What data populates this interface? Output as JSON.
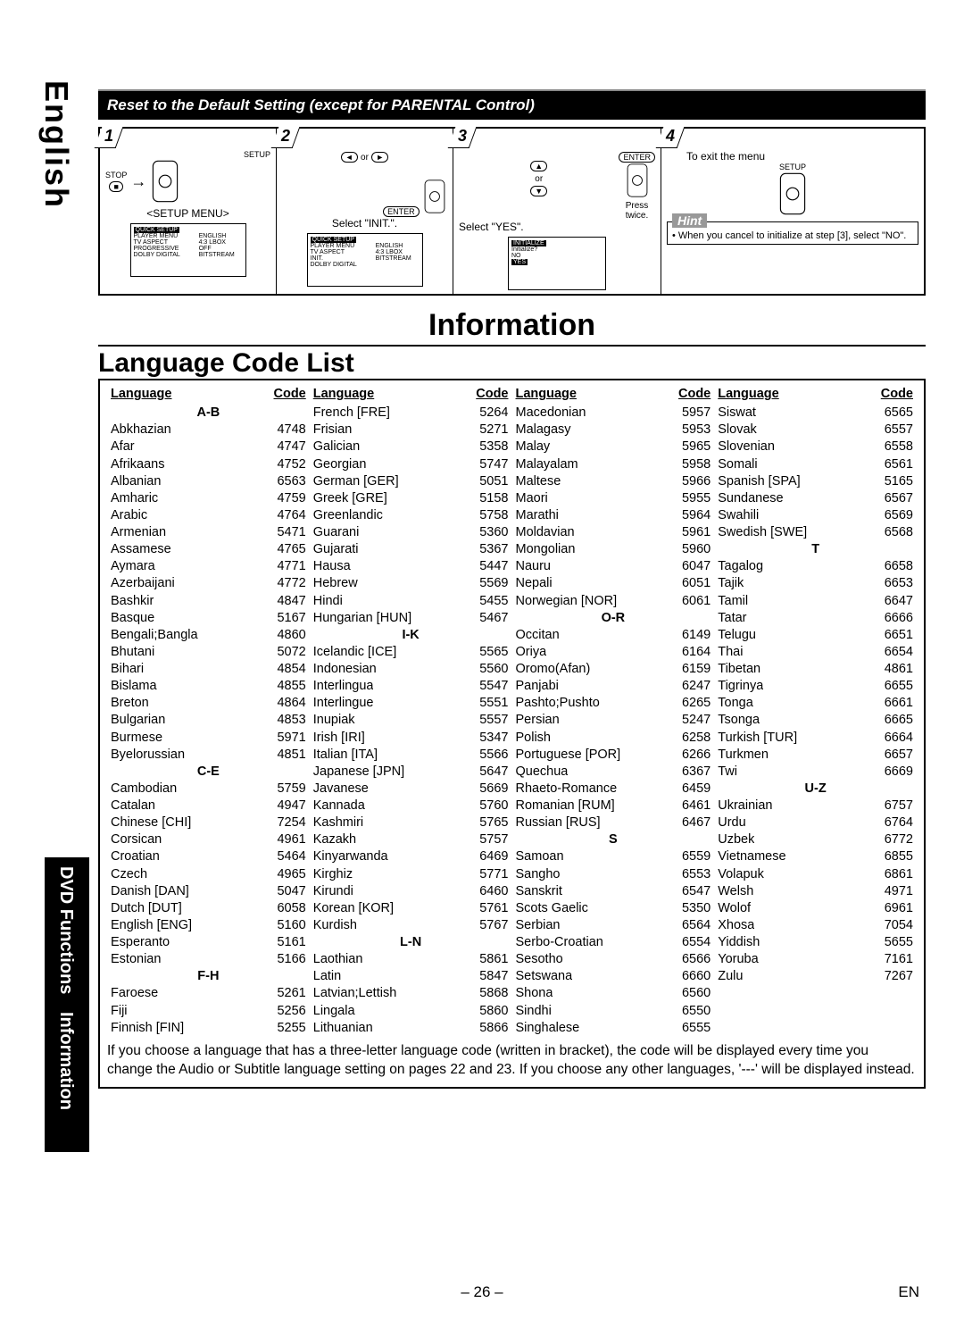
{
  "sideTab1": "English",
  "sideTab2a": "DVD Functions",
  "sideTab2b": "Information",
  "sectionBarTitle": "Reset to the Default Setting (except for PARENTAL Control)",
  "step1": {
    "num": "1",
    "setup": "SETUP",
    "stop": "STOP",
    "menuLabel": "<SETUP MENU>",
    "screen": {
      "hi": "QUICK SETUP",
      "l1": "PLAYER MENU",
      "l2": "TV ASPECT",
      "l3": "PROGRESSIVE",
      "l4": "DOLBY DIGITAL",
      "r1": "ENGLISH",
      "r2": "4:3 LBOX",
      "r3": "OFF",
      "r4": "BITSTREAM"
    }
  },
  "step2": {
    "num": "2",
    "or": "or",
    "caption": "Select \"INIT.\".",
    "enter": "ENTER",
    "screen": {
      "hi": "QUICK SETUP",
      "l1": "PLAYER MENU",
      "l2": "TV ASPECT",
      "l3": "INIT.",
      "l4": "DOLBY DIGITAL",
      "r1": "ENGLISH",
      "r2": "4:3 LBOX",
      "r3": "",
      "r4": "BITSTREAM"
    }
  },
  "step3": {
    "num": "3",
    "or": "or",
    "caption": "Select \"YES\".",
    "enter": "ENTER",
    "press": "Press twice.",
    "screen": {
      "hi": "INITIALIZE",
      "l1": "Initialize?",
      "l2": "NO",
      "l3": "YES"
    }
  },
  "step4": {
    "num": "4",
    "toExit": "To exit the menu",
    "setup": "SETUP",
    "hintLabel": "Hint",
    "hintText": "• When you cancel to initialize at step [3], select \"NO\"."
  },
  "infoTitle": "Information",
  "lclTitle": "Language Code List",
  "colHeaders": {
    "lang": "Language",
    "code": "Code"
  },
  "groups": {
    "ab": "A-B",
    "ce": "C-E",
    "fh": "F-H",
    "ik": "I-K",
    "ln": "L-N",
    "or": "O-R",
    "s": "S",
    "t": "T",
    "uz": "U-Z"
  },
  "col1": [
    {
      "g": "ab"
    },
    {
      "l": "Abkhazian",
      "c": "4748"
    },
    {
      "l": "Afar",
      "c": "4747"
    },
    {
      "l": "Afrikaans",
      "c": "4752"
    },
    {
      "l": "Albanian",
      "c": "6563"
    },
    {
      "l": "Amharic",
      "c": "4759"
    },
    {
      "l": "Arabic",
      "c": "4764"
    },
    {
      "l": "Armenian",
      "c": "5471"
    },
    {
      "l": "Assamese",
      "c": "4765"
    },
    {
      "l": "Aymara",
      "c": "4771"
    },
    {
      "l": "Azerbaijani",
      "c": "4772"
    },
    {
      "l": "Bashkir",
      "c": "4847"
    },
    {
      "l": "Basque",
      "c": "5167"
    },
    {
      "l": "Bengali;Bangla",
      "c": "4860"
    },
    {
      "l": "Bhutani",
      "c": "5072"
    },
    {
      "l": "Bihari",
      "c": "4854"
    },
    {
      "l": "Bislama",
      "c": "4855"
    },
    {
      "l": "Breton",
      "c": "4864"
    },
    {
      "l": "Bulgarian",
      "c": "4853"
    },
    {
      "l": "Burmese",
      "c": "5971"
    },
    {
      "l": "Byelorussian",
      "c": "4851"
    },
    {
      "g": "ce"
    },
    {
      "l": "Cambodian",
      "c": "5759"
    },
    {
      "l": "Catalan",
      "c": "4947"
    },
    {
      "l": "Chinese [CHI]",
      "c": "7254"
    },
    {
      "l": "Corsican",
      "c": "4961"
    },
    {
      "l": "Croatian",
      "c": "5464"
    },
    {
      "l": "Czech",
      "c": "4965"
    },
    {
      "l": "Danish [DAN]",
      "c": "5047"
    },
    {
      "l": "Dutch [DUT]",
      "c": "6058"
    },
    {
      "l": "English [ENG]",
      "c": "5160"
    },
    {
      "l": "Esperanto",
      "c": "5161"
    },
    {
      "l": "Estonian",
      "c": "5166"
    },
    {
      "g": "fh"
    },
    {
      "l": "Faroese",
      "c": "5261"
    },
    {
      "l": "Fiji",
      "c": "5256"
    },
    {
      "l": "Finnish [FIN]",
      "c": "5255"
    }
  ],
  "col2": [
    {
      "l": "French [FRE]",
      "c": "5264"
    },
    {
      "l": "Frisian",
      "c": "5271"
    },
    {
      "l": "Galician",
      "c": "5358"
    },
    {
      "l": "Georgian",
      "c": "5747"
    },
    {
      "l": "German [GER]",
      "c": "5051"
    },
    {
      "l": "Greek [GRE]",
      "c": "5158"
    },
    {
      "l": "Greenlandic",
      "c": "5758"
    },
    {
      "l": "Guarani",
      "c": "5360"
    },
    {
      "l": "Gujarati",
      "c": "5367"
    },
    {
      "l": "Hausa",
      "c": "5447"
    },
    {
      "l": "Hebrew",
      "c": "5569"
    },
    {
      "l": "Hindi",
      "c": "5455"
    },
    {
      "l": "Hungarian [HUN]",
      "c": "5467"
    },
    {
      "g": "ik"
    },
    {
      "l": "Icelandic [ICE]",
      "c": "5565"
    },
    {
      "l": "Indonesian",
      "c": "5560"
    },
    {
      "l": "Interlingua",
      "c": "5547"
    },
    {
      "l": "Interlingue",
      "c": "5551"
    },
    {
      "l": "Inupiak",
      "c": "5557"
    },
    {
      "l": "Irish [IRI]",
      "c": "5347"
    },
    {
      "l": "Italian [ITA]",
      "c": "5566"
    },
    {
      "l": "Japanese [JPN]",
      "c": "5647"
    },
    {
      "l": "Javanese",
      "c": "5669"
    },
    {
      "l": "Kannada",
      "c": "5760"
    },
    {
      "l": "Kashmiri",
      "c": "5765"
    },
    {
      "l": "Kazakh",
      "c": "5757"
    },
    {
      "l": "Kinyarwanda",
      "c": "6469"
    },
    {
      "l": "Kirghiz",
      "c": "5771"
    },
    {
      "l": "Kirundi",
      "c": "6460"
    },
    {
      "l": "Korean [KOR]",
      "c": "5761"
    },
    {
      "l": "Kurdish",
      "c": "5767"
    },
    {
      "g": "ln"
    },
    {
      "l": "Laothian",
      "c": "5861"
    },
    {
      "l": "Latin",
      "c": "5847"
    },
    {
      "l": "Latvian;Lettish",
      "c": "5868"
    },
    {
      "l": "Lingala",
      "c": "5860"
    },
    {
      "l": "Lithuanian",
      "c": "5866"
    }
  ],
  "col3": [
    {
      "l": "Macedonian",
      "c": "5957"
    },
    {
      "l": "Malagasy",
      "c": "5953"
    },
    {
      "l": "Malay",
      "c": "5965"
    },
    {
      "l": "Malayalam",
      "c": "5958"
    },
    {
      "l": "Maltese",
      "c": "5966"
    },
    {
      "l": "Maori",
      "c": "5955"
    },
    {
      "l": "Marathi",
      "c": "5964"
    },
    {
      "l": "Moldavian",
      "c": "5961"
    },
    {
      "l": "Mongolian",
      "c": "5960"
    },
    {
      "l": "Nauru",
      "c": "6047"
    },
    {
      "l": "Nepali",
      "c": "6051"
    },
    {
      "l": "Norwegian [NOR]",
      "c": "6061"
    },
    {
      "g": "or"
    },
    {
      "l": "Occitan",
      "c": "6149"
    },
    {
      "l": "Oriya",
      "c": "6164"
    },
    {
      "l": "Oromo(Afan)",
      "c": "6159"
    },
    {
      "l": "Panjabi",
      "c": "6247"
    },
    {
      "l": "Pashto;Pushto",
      "c": "6265"
    },
    {
      "l": "Persian",
      "c": "5247"
    },
    {
      "l": "Polish",
      "c": "6258"
    },
    {
      "l": "Portuguese [POR]",
      "c": "6266"
    },
    {
      "l": "Quechua",
      "c": "6367"
    },
    {
      "l": "Rhaeto-Romance",
      "c": "6459"
    },
    {
      "l": "Romanian [RUM]",
      "c": "6461"
    },
    {
      "l": "Russian [RUS]",
      "c": "6467"
    },
    {
      "g": "s"
    },
    {
      "l": "Samoan",
      "c": "6559"
    },
    {
      "l": "Sangho",
      "c": "6553"
    },
    {
      "l": "Sanskrit",
      "c": "6547"
    },
    {
      "l": "Scots Gaelic",
      "c": "5350"
    },
    {
      "l": "Serbian",
      "c": "6564"
    },
    {
      "l": "Serbo-Croatian",
      "c": "6554"
    },
    {
      "l": "Sesotho",
      "c": "6566"
    },
    {
      "l": "Setswana",
      "c": "6660"
    },
    {
      "l": "Shona",
      "c": "6560"
    },
    {
      "l": "Sindhi",
      "c": "6550"
    },
    {
      "l": "Singhalese",
      "c": "6555"
    }
  ],
  "col4": [
    {
      "l": "Siswat",
      "c": "6565"
    },
    {
      "l": "Slovak",
      "c": "6557"
    },
    {
      "l": "Slovenian",
      "c": "6558"
    },
    {
      "l": "Somali",
      "c": "6561"
    },
    {
      "l": "Spanish [SPA]",
      "c": "5165"
    },
    {
      "l": "Sundanese",
      "c": "6567"
    },
    {
      "l": "Swahili",
      "c": "6569"
    },
    {
      "l": "Swedish [SWE]",
      "c": "6568"
    },
    {
      "g": "t"
    },
    {
      "l": "Tagalog",
      "c": "6658"
    },
    {
      "l": "Tajik",
      "c": "6653"
    },
    {
      "l": "Tamil",
      "c": "6647"
    },
    {
      "l": "Tatar",
      "c": "6666"
    },
    {
      "l": "Telugu",
      "c": "6651"
    },
    {
      "l": "Thai",
      "c": "6654"
    },
    {
      "l": "Tibetan",
      "c": "4861"
    },
    {
      "l": "Tigrinya",
      "c": "6655"
    },
    {
      "l": "Tonga",
      "c": "6661"
    },
    {
      "l": "Tsonga",
      "c": "6665"
    },
    {
      "l": "Turkish [TUR]",
      "c": "6664"
    },
    {
      "l": "Turkmen",
      "c": "6657"
    },
    {
      "l": "Twi",
      "c": "6669"
    },
    {
      "g": "uz"
    },
    {
      "l": "Ukrainian",
      "c": "6757"
    },
    {
      "l": "Urdu",
      "c": "6764"
    },
    {
      "l": "Uzbek",
      "c": "6772"
    },
    {
      "l": "Vietnamese",
      "c": "6855"
    },
    {
      "l": "Volapuk",
      "c": "6861"
    },
    {
      "l": "Welsh",
      "c": "4971"
    },
    {
      "l": "Wolof",
      "c": "6961"
    },
    {
      "l": "Xhosa",
      "c": "7054"
    },
    {
      "l": "Yiddish",
      "c": "5655"
    },
    {
      "l": "Yoruba",
      "c": "7161"
    },
    {
      "l": "Zulu",
      "c": "7267"
    }
  ],
  "noteText": "If you choose a language that has a three-letter language code (written in bracket), the code will be displayed every time you change the Audio or Subtitle language setting on pages 22 and 23. If you choose any other languages, '---' will be displayed instead.",
  "pageNum": "– 26 –",
  "pageLang": "EN"
}
